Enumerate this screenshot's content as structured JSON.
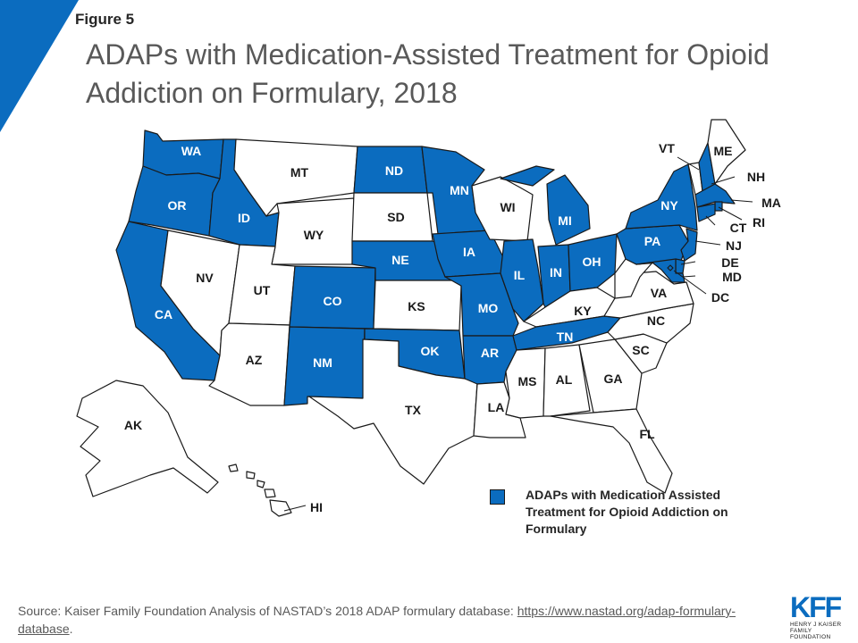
{
  "figure_label": "Figure 5",
  "title": "ADAPs with Medication-Assisted Treatment for Opioid Addiction on Formulary, 2018",
  "colors": {
    "covered": "#0b6cbf",
    "not_covered": "#ffffff",
    "border": "#1a1a1a"
  },
  "legend": {
    "covered_label": "ADAPs with Medication Assisted Treatment for Opioid Addiction on Formulary"
  },
  "states": {
    "WA": "covered",
    "OR": "covered",
    "CA": "covered",
    "ID": "covered",
    "NV": "not_covered",
    "MT": "not_covered",
    "WY": "not_covered",
    "UT": "not_covered",
    "AZ": "not_covered",
    "CO": "covered",
    "NM": "covered",
    "ND": "covered",
    "SD": "not_covered",
    "NE": "covered",
    "KS": "not_covered",
    "OK": "covered",
    "TX": "not_covered",
    "MN": "covered",
    "IA": "covered",
    "MO": "covered",
    "AR": "covered",
    "LA": "not_covered",
    "WI": "not_covered",
    "IL": "covered",
    "MI": "covered",
    "IN": "covered",
    "OH": "covered",
    "KY": "not_covered",
    "TN": "covered",
    "MS": "not_covered",
    "AL": "not_covered",
    "GA": "not_covered",
    "FL": "not_covered",
    "SC": "not_covered",
    "NC": "not_covered",
    "VA": "not_covered",
    "WV": "not_covered",
    "PA": "covered",
    "NY": "covered",
    "VT": "not_covered",
    "NH": "covered",
    "ME": "not_covered",
    "MA": "covered",
    "RI": "covered",
    "CT": "covered",
    "NJ": "covered",
    "DE": "covered",
    "MD": "covered",
    "DC": "covered",
    "AK": "not_covered",
    "HI": "not_covered"
  },
  "state_labels": {
    "WA": "WA",
    "OR": "OR",
    "CA": "CA",
    "ID": "ID",
    "NV": "NV",
    "MT": "MT",
    "WY": "WY",
    "UT": "UT",
    "AZ": "AZ",
    "CO": "CO",
    "NM": "NM",
    "ND": "ND",
    "SD": "SD",
    "NE": "NE",
    "KS": "KS",
    "OK": "OK",
    "TX": "TX",
    "MN": "MN",
    "IA": "IA",
    "MO": "MO",
    "AR": "AR",
    "LA": "LA",
    "WI": "WI",
    "IL": "IL",
    "MI": "MI",
    "IN": "IN",
    "OH": "OH",
    "KY": "KY",
    "TN": "TN",
    "MS": "MS",
    "AL": "AL",
    "GA": "GA",
    "FL": "FL",
    "SC": "SC",
    "NC": "NC",
    "VA": "VA",
    "PA": "PA",
    "NY": "NY",
    "VT": "VT",
    "NH": "NH",
    "ME": "ME",
    "MA": "MA",
    "RI": "RI",
    "CT": "CT",
    "NJ": "NJ",
    "DE": "DE",
    "MD": "MD",
    "DC": "DC",
    "AK": "AK",
    "HI": "HI"
  },
  "source": {
    "prefix": "Source: Kaiser Family Foundation Analysis of NASTAD’s 2018 ADAP formulary database: ",
    "link": "https://www.nastad.org/adap-formulary-database",
    "suffix": "."
  },
  "logo": {
    "main": "KFF",
    "sub_line1": "HENRY J KAISER",
    "sub_line2": "FAMILY FOUNDATION"
  }
}
